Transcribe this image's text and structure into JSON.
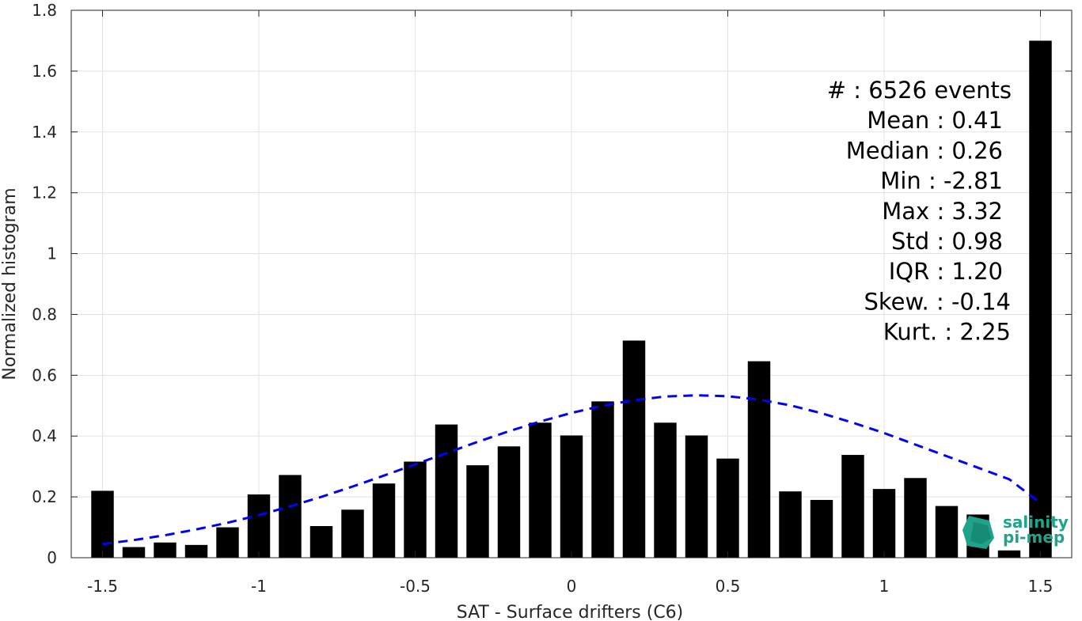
{
  "chart_data": {
    "type": "bar",
    "xlabel": "SAT - Surface drifters (C6)",
    "ylabel": "Normalized histogram",
    "xlim": [
      -1.6,
      1.6
    ],
    "ylim": [
      0,
      1.8
    ],
    "x_ticks": [
      -1.5,
      -1,
      -0.5,
      0,
      0.5,
      1,
      1.5
    ],
    "x_tick_labels": [
      "-1.5",
      "-1",
      "-0.5",
      "0",
      "0.5",
      "1",
      "1.5"
    ],
    "y_ticks": [
      0,
      0.2,
      0.4,
      0.6,
      0.8,
      1,
      1.2,
      1.4,
      1.6,
      1.8
    ],
    "y_tick_labels": [
      "0",
      "0.2",
      "0.4",
      "0.6",
      "0.8",
      "1",
      "1.2",
      "1.4",
      "1.6",
      "1.8"
    ],
    "grid": true,
    "bar_color": "#000000",
    "fit_color": "#0000ff",
    "bars": {
      "x": [
        -1.5,
        -1.4,
        -1.3,
        -1.2,
        -1.1,
        -1.0,
        -0.9,
        -0.8,
        -0.7,
        -0.6,
        -0.5,
        -0.4,
        -0.3,
        -0.2,
        -0.1,
        0.0,
        0.1,
        0.2,
        0.3,
        0.4,
        0.5,
        0.6,
        0.7,
        0.8,
        0.9,
        1.0,
        1.1,
        1.2,
        1.3,
        1.4,
        1.5
      ],
      "values": [
        0.22,
        0.035,
        0.05,
        0.042,
        0.1,
        0.208,
        0.272,
        0.104,
        0.158,
        0.244,
        0.316,
        0.438,
        0.304,
        0.366,
        0.444,
        0.402,
        0.514,
        0.714,
        0.444,
        0.402,
        0.326,
        0.646,
        0.218,
        0.19,
        0.338,
        0.226,
        0.262,
        0.17,
        0.142,
        0.024,
        1.7
      ]
    },
    "fit_curve": {
      "style": "dashed",
      "x": [
        -1.5,
        -1.4,
        -1.3,
        -1.2,
        -1.1,
        -1.0,
        -0.9,
        -0.8,
        -0.7,
        -0.6,
        -0.5,
        -0.4,
        -0.3,
        -0.2,
        -0.1,
        0.0,
        0.1,
        0.2,
        0.3,
        0.4,
        0.5,
        0.6,
        0.7,
        0.8,
        0.9,
        1.0,
        1.1,
        1.2,
        1.3,
        1.4,
        1.5
      ],
      "y": [
        0.045,
        0.058,
        0.074,
        0.093,
        0.115,
        0.14,
        0.169,
        0.2,
        0.234,
        0.27,
        0.307,
        0.344,
        0.381,
        0.416,
        0.448,
        0.476,
        0.5,
        0.518,
        0.53,
        0.534,
        0.531,
        0.52,
        0.501,
        0.475,
        0.444,
        0.41,
        0.372,
        0.334,
        0.296,
        0.258,
        0.18
      ]
    },
    "annotations": [
      "#  : 6526 events",
      "Mean : 0.41",
      "Median : 0.26",
      "Min : -2.81",
      "Max : 3.32",
      "Std : 0.98",
      "IQR : 1.20",
      "Skew. : -0.14",
      "Kurt. : 2.25"
    ]
  },
  "logo": {
    "line1": "salinity",
    "line2": "pi-mep",
    "color": "#1fa38a"
  }
}
